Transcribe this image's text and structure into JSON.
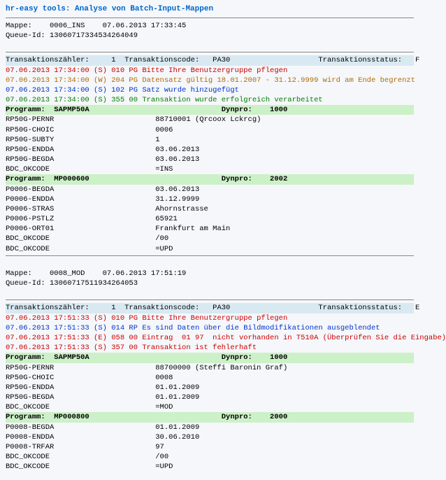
{
  "title": "hr-easy tools: Analyse von Batch-Input-Mappen",
  "labels": {
    "mappe": "Mappe:",
    "queue": "Queue-Id:",
    "tcounter": "Transaktionszähler:",
    "tcode": "Transaktionscode:",
    "tstatus": "Transaktionsstatus:",
    "programm": "Programm:",
    "dynpro": "Dynpro:"
  },
  "sections": [
    {
      "mappe": "0006_INS",
      "mappe_ts": "07.06.2013 17:33:45",
      "queue": "13060717334534264049",
      "tcounter": "1",
      "tcode": "PA30",
      "tstatus": "F",
      "messages": [
        {
          "cls": "clr-red",
          "text": "07.06.2013 17:34:00 (S) 010 PG Bitte Ihre Benutzergruppe pflegen"
        },
        {
          "cls": "clr-orange",
          "text": "07.06.2013 17:34:00 (W) 204 PG Datensatz gültig 18.01.2007 - 31.12.9999 wird am Ende begrenzt"
        },
        {
          "cls": "clr-blue",
          "text": "07.06.2013 17:34:00 (S) 102 PG Satz wurde hinzugefügt"
        },
        {
          "cls": "clr-green",
          "text": "07.06.2013 17:34:00 (S) 355 00 Transaktion wurde erfolgreich verarbeitet"
        }
      ],
      "programs": [
        {
          "name": "SAPMP50A",
          "dynpro": "1000",
          "fields": [
            {
              "k": "RP50G-PERNR",
              "v": "88710001 (Qrcoox Lckrcg)"
            },
            {
              "k": "RP50G-CHOIC",
              "v": "0006"
            },
            {
              "k": "RP50G-SUBTY",
              "v": "1"
            },
            {
              "k": "RP50G-ENDDA",
              "v": "03.06.2013"
            },
            {
              "k": "RP50G-BEGDA",
              "v": "03.06.2013"
            },
            {
              "k": "BDC_OKCODE",
              "v": "=INS"
            }
          ]
        },
        {
          "name": "MP000600",
          "dynpro": "2002",
          "fields": [
            {
              "k": "P0006-BEGDA",
              "v": "03.06.2013"
            },
            {
              "k": "P0006-ENDDA",
              "v": "31.12.9999"
            },
            {
              "k": "P0006-STRAS",
              "v": "Ahornstrasse"
            },
            {
              "k": "P0006-PSTLZ",
              "v": "65921"
            },
            {
              "k": "P0006-ORT01",
              "v": "Frankfurt am Main"
            },
            {
              "k": "BDC_OKCODE",
              "v": "/00"
            },
            {
              "k": "BDC_OKCODE",
              "v": "=UPD"
            }
          ]
        }
      ]
    },
    {
      "mappe": "0008_MOD",
      "mappe_ts": "07.06.2013 17:51:19",
      "queue": "13060717511934264053",
      "tcounter": "1",
      "tcode": "PA30",
      "tstatus": "E",
      "messages": [
        {
          "cls": "clr-red",
          "text": "07.06.2013 17:51:33 (S) 010 PG Bitte Ihre Benutzergruppe pflegen"
        },
        {
          "cls": "clr-blue",
          "text": "07.06.2013 17:51:33 (S) 014 RP Es sind Daten über die Bildmodifikationen ausgeblendet"
        },
        {
          "cls": "clr-red",
          "text": "07.06.2013 17:51:33 (E) 058 00 Eintrag  01 97  nicht vorhanden in T510A (Überprüfen Sie die Eingabe)"
        },
        {
          "cls": "clr-red",
          "text": "07.06.2013 17:51:33 (S) 357 00 Transaktion ist fehlerhaft"
        }
      ],
      "programs": [
        {
          "name": "SAPMP50A",
          "dynpro": "1000",
          "fields": [
            {
              "k": "RP50G-PERNR",
              "v": "88700000 (Steffi Baronin Graf)"
            },
            {
              "k": "RP50G-CHOIC",
              "v": "0008"
            },
            {
              "k": "RP50G-ENDDA",
              "v": "01.01.2009"
            },
            {
              "k": "RP50G-BEGDA",
              "v": "01.01.2009"
            },
            {
              "k": "BDC_OKCODE",
              "v": "=MOD"
            }
          ]
        },
        {
          "name": "MP000800",
          "dynpro": "2000",
          "fields": [
            {
              "k": "P0008-BEGDA",
              "v": "01.01.2009"
            },
            {
              "k": "P0008-ENDDA",
              "v": "30.06.2010"
            },
            {
              "k": "P0008-TRFAR",
              "v": "97"
            },
            {
              "k": "BDC_OKCODE",
              "v": "/00"
            },
            {
              "k": "BDC_OKCODE",
              "v": "=UPD"
            }
          ]
        }
      ]
    }
  ]
}
